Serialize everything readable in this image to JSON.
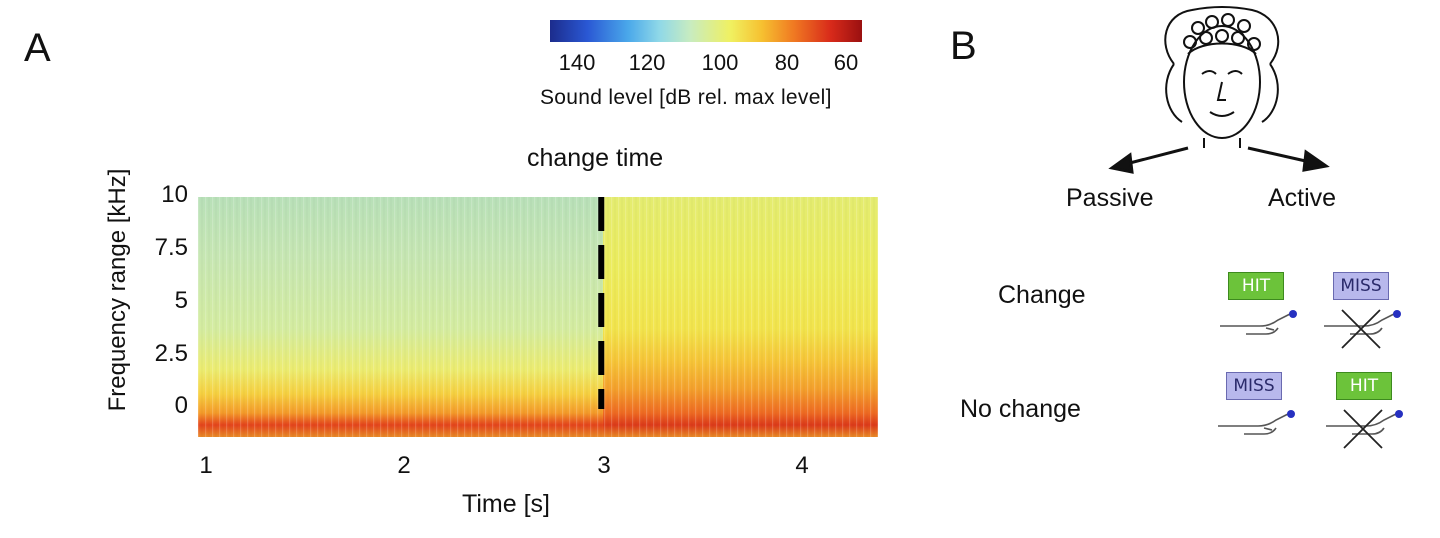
{
  "panels": {
    "a_label": "A",
    "b_label": "B"
  },
  "colorbar": {
    "ticks": [
      "140",
      "120",
      "100",
      "80",
      "60"
    ],
    "label": "Sound level [dB rel. max level]",
    "colors": [
      "#1c2c8c",
      "#4aa8ea",
      "#c8ecc0",
      "#f0f060",
      "#f07a22",
      "#d82a1a",
      "#9a1010"
    ]
  },
  "chart_data": {
    "type": "heatmap",
    "title": "",
    "annotation": "change time",
    "xlabel": "Time [s]",
    "ylabel": "Frequency range [kHz]",
    "x_ticks": [
      "1",
      "2",
      "3",
      "4"
    ],
    "y_ticks": [
      "10",
      "7.5",
      "5",
      "2.5",
      "0"
    ],
    "xlim": [
      0.96,
      4.4
    ],
    "ylim": [
      -1,
      10
    ],
    "change_time": 3,
    "colorbar_range_db": [
      140,
      60
    ],
    "description_levels": {
      "before_change": {
        "high_freq_db": 110,
        "low_freq_db": 70
      },
      "after_change": {
        "high_freq_db": 95,
        "low_freq_db": 70
      }
    }
  },
  "panel_b": {
    "passive_label": "Passive",
    "active_label": "Active",
    "rows": [
      {
        "label": "Change",
        "passive_box": "HIT",
        "active_box": "MISS"
      },
      {
        "label": "No change",
        "passive_box": "MISS",
        "active_box": "HIT"
      }
    ]
  }
}
